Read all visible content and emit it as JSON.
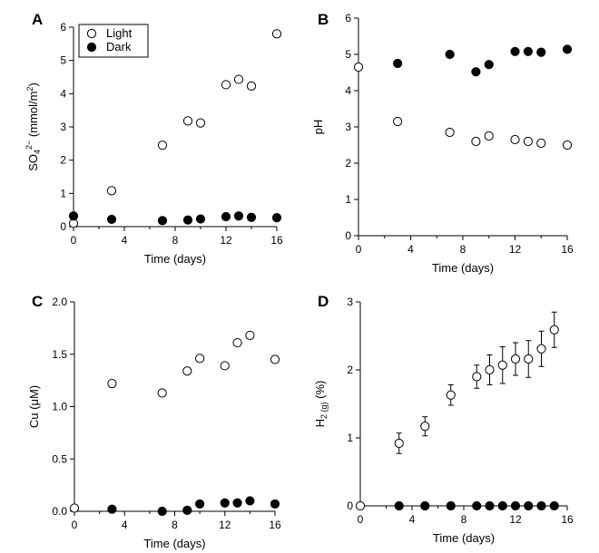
{
  "chart_data": [
    {
      "panel": "A",
      "type": "scatter",
      "xlabel": "Time (days)",
      "ylabel": "SO4 2− (mmol/m2)",
      "ylabel_parts": {
        "pre": "SO",
        "sub": "4",
        "sup": "2−",
        "post": " (mmol/m",
        "post_sup": "2",
        "end": ")"
      },
      "xlim": [
        0,
        16
      ],
      "ylim": [
        0,
        6
      ],
      "x_ticks": [
        0,
        4,
        8,
        12,
        16
      ],
      "y_ticks": [
        0,
        1,
        2,
        3,
        4,
        5,
        6
      ],
      "x_tick_labels": [
        "0",
        "4",
        "8",
        "12",
        "16"
      ],
      "y_tick_labels": [
        "0",
        "1",
        "2",
        "3",
        "4",
        "5",
        "6"
      ],
      "legend": {
        "position": "top-left",
        "entries": [
          "Light",
          "Dark"
        ]
      },
      "series": [
        {
          "name": "Light",
          "marker": "open",
          "points": [
            [
              0,
              0.1
            ],
            [
              3,
              1.08
            ],
            [
              7,
              2.45
            ],
            [
              9,
              3.18
            ],
            [
              10,
              3.12
            ],
            [
              12,
              4.27
            ],
            [
              13,
              4.43
            ],
            [
              14,
              4.23
            ],
            [
              16,
              5.8
            ]
          ]
        },
        {
          "name": "Dark",
          "marker": "filled",
          "points": [
            [
              0,
              0.32
            ],
            [
              3,
              0.22
            ],
            [
              7,
              0.18
            ],
            [
              9,
              0.2
            ],
            [
              10,
              0.23
            ],
            [
              12,
              0.3
            ],
            [
              13,
              0.32
            ],
            [
              14,
              0.28
            ],
            [
              16,
              0.27
            ]
          ]
        }
      ]
    },
    {
      "panel": "B",
      "type": "scatter",
      "xlabel": "Time (days)",
      "ylabel": "pH",
      "xlim": [
        0,
        16
      ],
      "ylim": [
        0,
        6
      ],
      "x_ticks": [
        0,
        4,
        8,
        12,
        16
      ],
      "y_ticks": [
        0,
        1,
        2,
        3,
        4,
        5,
        6
      ],
      "x_tick_labels": [
        "0",
        "4",
        "8",
        "12",
        "16"
      ],
      "y_tick_labels": [
        "0",
        "1",
        "2",
        "3",
        "4",
        "5",
        "6"
      ],
      "series": [
        {
          "name": "Light",
          "marker": "open",
          "points": [
            [
              0,
              4.65
            ],
            [
              3,
              3.15
            ],
            [
              7,
              2.85
            ],
            [
              9,
              2.6
            ],
            [
              10,
              2.75
            ],
            [
              12,
              2.65
            ],
            [
              13,
              2.6
            ],
            [
              14,
              2.55
            ],
            [
              16,
              2.5
            ]
          ]
        },
        {
          "name": "Dark",
          "marker": "filled",
          "points": [
            [
              3,
              4.75
            ],
            [
              7,
              5.0
            ],
            [
              9,
              4.52
            ],
            [
              10,
              4.72
            ],
            [
              12,
              5.08
            ],
            [
              13,
              5.08
            ],
            [
              14,
              5.06
            ],
            [
              16,
              5.14
            ]
          ]
        }
      ]
    },
    {
      "panel": "C",
      "type": "scatter",
      "xlabel": "Time (days)",
      "ylabel": "Cu (μM)",
      "xlim": [
        0,
        16
      ],
      "ylim": [
        0,
        2
      ],
      "x_ticks": [
        0,
        4,
        8,
        12,
        16
      ],
      "y_ticks": [
        0,
        0.5,
        1.0,
        1.5,
        2.0
      ],
      "x_tick_labels": [
        "0",
        "4",
        "8",
        "12",
        "16"
      ],
      "y_tick_labels": [
        "0.0",
        "0.5",
        "1.0",
        "1.5",
        "2.0"
      ],
      "series": [
        {
          "name": "Light",
          "marker": "open",
          "points": [
            [
              0,
              0.03
            ],
            [
              3,
              1.22
            ],
            [
              7,
              1.13
            ],
            [
              9,
              1.34
            ],
            [
              10,
              1.46
            ],
            [
              12,
              1.39
            ],
            [
              13,
              1.61
            ],
            [
              14,
              1.68
            ],
            [
              16,
              1.45
            ]
          ]
        },
        {
          "name": "Dark",
          "marker": "filled",
          "points": [
            [
              3,
              0.02
            ],
            [
              7,
              0.0
            ],
            [
              9,
              0.01
            ],
            [
              10,
              0.07
            ],
            [
              12,
              0.08
            ],
            [
              13,
              0.08
            ],
            [
              14,
              0.1
            ],
            [
              16,
              0.07
            ]
          ]
        }
      ]
    },
    {
      "panel": "D",
      "type": "scatter",
      "xlabel": "Time (days)",
      "ylabel": "H2 (g) (%)",
      "ylabel_parts": {
        "pre": "H",
        "sub": "2 (g)",
        "post": " (%)"
      },
      "xlim": [
        0,
        16
      ],
      "ylim": [
        0,
        3
      ],
      "x_ticks": [
        0,
        4,
        8,
        12,
        16
      ],
      "y_ticks": [
        0,
        1,
        2,
        3
      ],
      "x_tick_labels": [
        "0",
        "4",
        "8",
        "12",
        "16"
      ],
      "y_tick_labels": [
        "0",
        "1",
        "2",
        "3"
      ],
      "error_bars": true,
      "series": [
        {
          "name": "Light",
          "marker": "open",
          "points": [
            [
              0,
              0.0,
              0.0
            ],
            [
              3,
              0.92,
              0.15
            ],
            [
              5,
              1.17,
              0.14
            ],
            [
              7,
              1.63,
              0.15
            ],
            [
              9,
              1.9,
              0.17
            ],
            [
              10,
              2.0,
              0.22
            ],
            [
              11,
              2.07,
              0.27
            ],
            [
              12,
              2.16,
              0.24
            ],
            [
              13,
              2.16,
              0.27
            ],
            [
              14,
              2.31,
              0.26
            ],
            [
              15,
              2.59,
              0.26
            ]
          ]
        },
        {
          "name": "Dark",
          "marker": "filled",
          "points": [
            [
              3,
              0.0,
              0
            ],
            [
              5,
              0.0,
              0
            ],
            [
              7,
              0.0,
              0
            ],
            [
              9,
              0.0,
              0
            ],
            [
              10,
              0.0,
              0
            ],
            [
              11,
              0.0,
              0
            ],
            [
              12,
              0.0,
              0
            ],
            [
              13,
              0.0,
              0
            ],
            [
              14,
              0.0,
              0
            ],
            [
              15,
              0.0,
              0
            ]
          ]
        }
      ]
    }
  ]
}
